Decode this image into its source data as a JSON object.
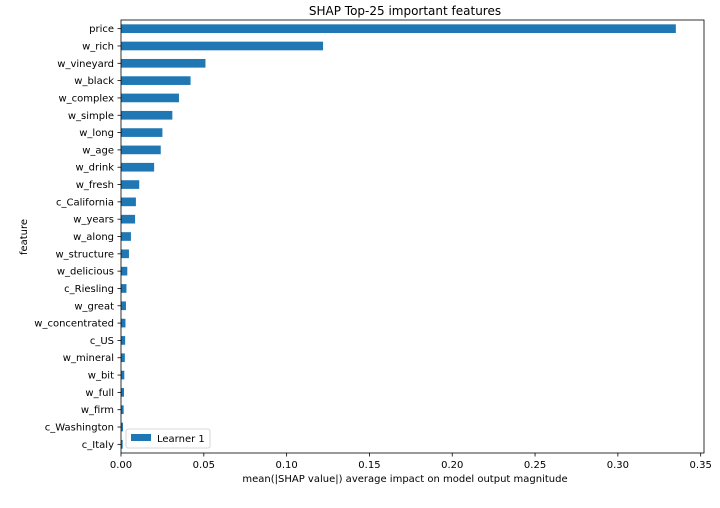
{
  "chart_data": {
    "type": "bar",
    "orientation": "horizontal",
    "title": "SHAP Top-25 important features",
    "xlabel": "mean(|SHAP value|) average impact on model output magnitude",
    "ylabel": "feature",
    "xlim": [
      0,
      0.352
    ],
    "xticks": [
      0.0,
      0.05,
      0.1,
      0.15,
      0.2,
      0.25,
      0.3,
      0.35
    ],
    "xtick_labels": [
      "0.00",
      "0.05",
      "0.10",
      "0.15",
      "0.20",
      "0.25",
      "0.30",
      "0.35"
    ],
    "grid": false,
    "legend_position": "lower-left",
    "bar_color": "#1f77b4",
    "categories": [
      "price",
      "w_rich",
      "w_vineyard",
      "w_black",
      "w_complex",
      "w_simple",
      "w_long",
      "w_age",
      "w_drink",
      "w_fresh",
      "c_California",
      "w_years",
      "w_along",
      "w_structure",
      "w_delicious",
      "c_Riesling",
      "w_great",
      "w_concentrated",
      "c_US",
      "w_mineral",
      "w_bit",
      "w_full",
      "w_firm",
      "c_Washington",
      "c_Italy"
    ],
    "series": [
      {
        "name": "Learner 1",
        "values": [
          0.335,
          0.122,
          0.051,
          0.042,
          0.035,
          0.031,
          0.025,
          0.024,
          0.02,
          0.011,
          0.009,
          0.0085,
          0.006,
          0.0048,
          0.0038,
          0.0033,
          0.003,
          0.0027,
          0.0025,
          0.0023,
          0.002,
          0.0018,
          0.0016,
          0.0012,
          0.001
        ]
      }
    ]
  }
}
